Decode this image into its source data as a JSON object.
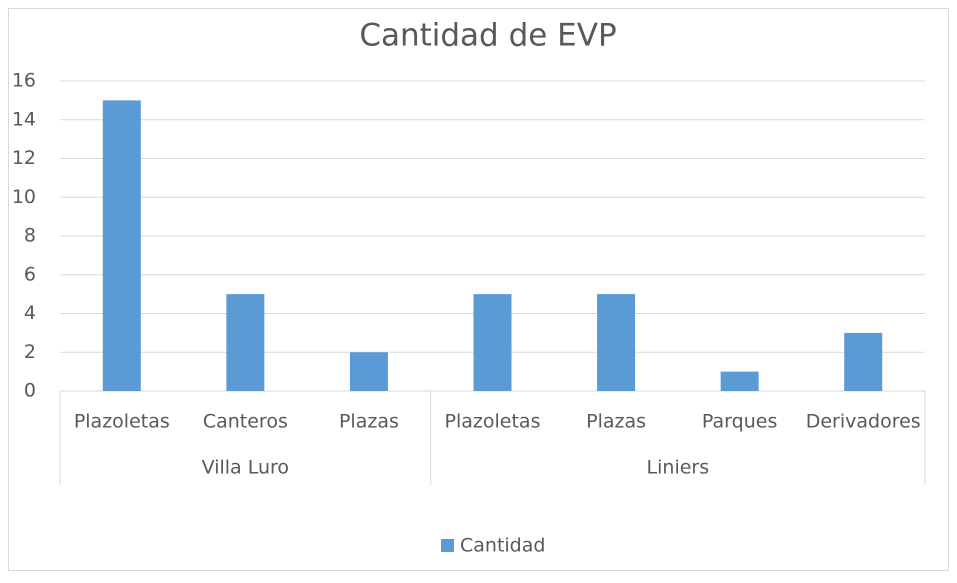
{
  "chart_data": {
    "type": "bar",
    "title": "Cantidad de EVP",
    "groups": [
      {
        "name": "Villa Luro",
        "categories": [
          "Plazoletas",
          "Canteros",
          "Plazas"
        ]
      },
      {
        "name": "Liniers",
        "categories": [
          "Plazoletas",
          "Plazas",
          "Parques",
          "Derivadores"
        ]
      }
    ],
    "series": [
      {
        "name": "Cantidad",
        "color": "#5b9bd5",
        "values": [
          15,
          5,
          2,
          5,
          5,
          1,
          3
        ]
      }
    ],
    "ylim": [
      0,
      16
    ],
    "yticks": [
      0,
      2,
      4,
      6,
      8,
      10,
      12,
      14,
      16
    ],
    "grid": true,
    "legend": "bottom"
  }
}
